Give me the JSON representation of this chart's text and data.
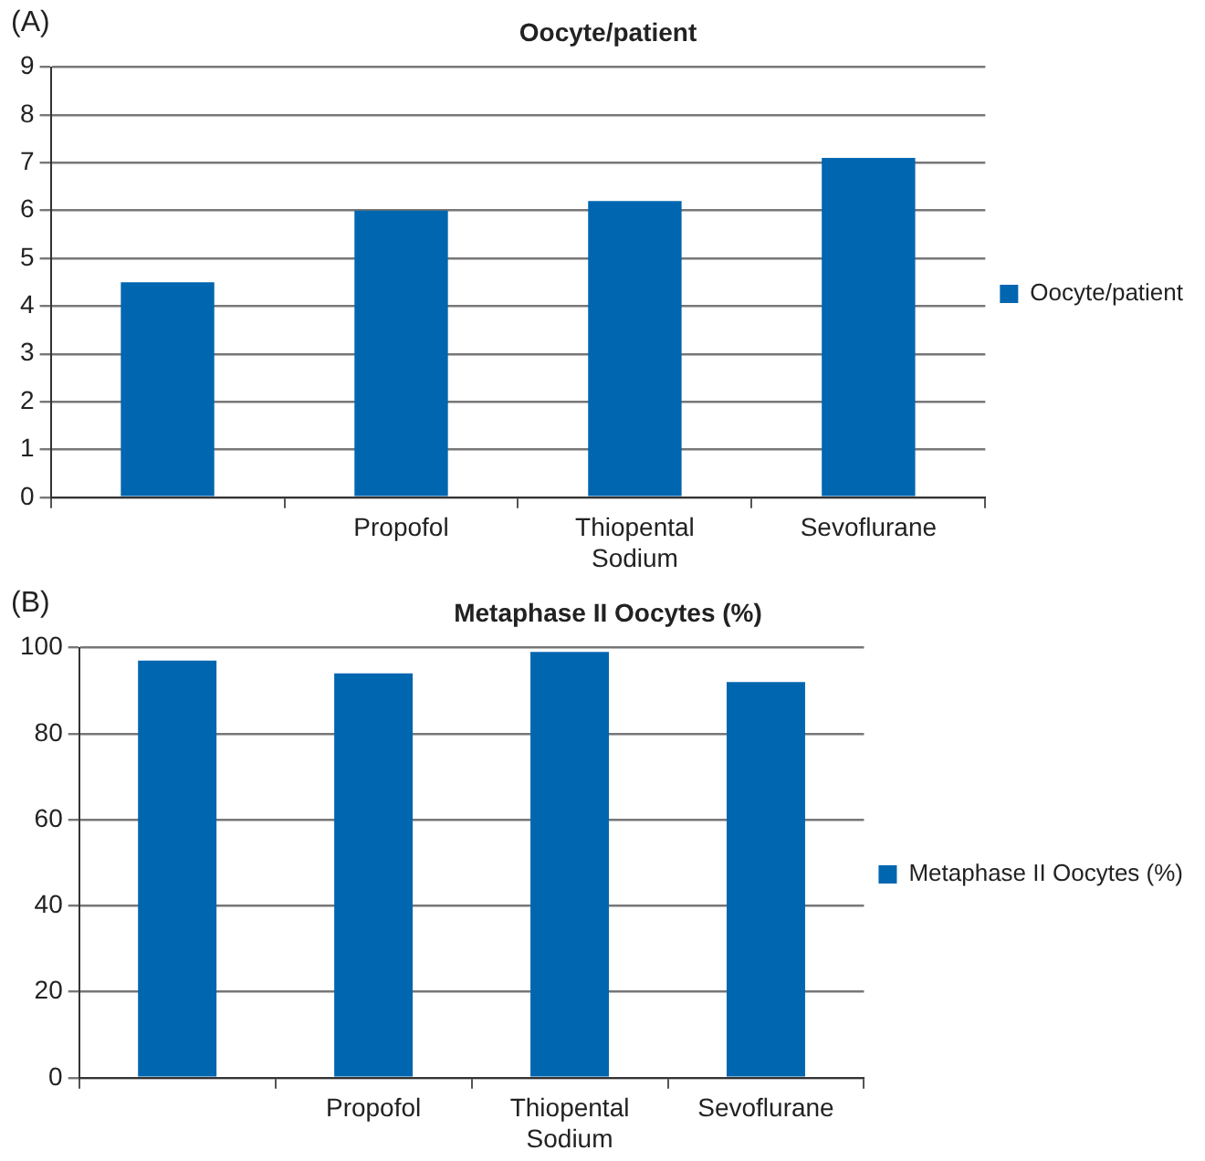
{
  "chart_data": [
    {
      "type": "bar",
      "title": "Oocyte/patient",
      "annotations": [
        "(A)"
      ],
      "categories": [
        null,
        "Propofol",
        "Thiopental Sodium",
        "Sevoflurane"
      ],
      "series": [
        {
          "name": "Oocyte/patient",
          "color": "#0066b0",
          "values": [
            4.5,
            6.0,
            6.2,
            7.1
          ]
        }
      ],
      "ylim": [
        0,
        9
      ],
      "yticks": [
        0,
        1,
        2,
        3,
        4,
        5,
        6,
        7,
        8,
        9
      ],
      "grid": "y",
      "legend": "right"
    },
    {
      "type": "bar",
      "title": "Metaphase II Oocytes (%)",
      "annotations": [
        "(B)"
      ],
      "categories": [
        null,
        "Propofol",
        "Thiopental Sodium",
        "Sevoflurane"
      ],
      "series": [
        {
          "name": "Metaphase II Oocytes (%)",
          "color": "#0066b0",
          "values": [
            97,
            94,
            99,
            92
          ]
        }
      ],
      "ylim": [
        0,
        100
      ],
      "yticks": [
        0,
        20,
        40,
        60,
        80,
        100
      ],
      "grid": "y",
      "legend": "right"
    }
  ]
}
